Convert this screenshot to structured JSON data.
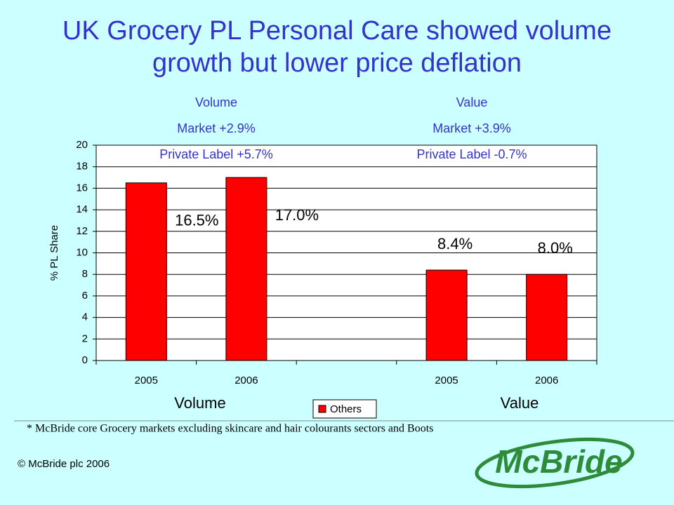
{
  "title": [
    "UK Grocery PL Personal Care showed volume",
    "growth but lower price deflation"
  ],
  "chart_data": {
    "type": "bar",
    "categories": [
      "2005",
      "2006",
      null,
      "2005",
      "2006"
    ],
    "series": [
      {
        "name": "Others",
        "color": "#ff0000",
        "values": [
          16.5,
          17.0,
          null,
          8.4,
          8.0
        ],
        "value_labels": [
          "16.5%",
          "17.0%",
          null,
          "8.4%",
          "8.0%"
        ]
      }
    ],
    "ylabel": "% PL Share",
    "ylim": [
      0,
      20
    ],
    "yticks": [
      0,
      2,
      4,
      6,
      8,
      10,
      12,
      14,
      16,
      18,
      20
    ],
    "grid": true,
    "groups": [
      "Volume",
      "Value"
    ],
    "annotations": [
      [
        "Volume",
        "Market +2.9%",
        "Private Label +5.7%"
      ],
      [
        "Value",
        "Market +3.9%",
        "Private Label  -0.7%"
      ]
    ],
    "legend": "bottom"
  },
  "footnote": "* McBride core Grocery markets excluding skincare and hair colourants sectors and Boots",
  "copyright": "© McBride plc 2006",
  "logo": "McBride"
}
